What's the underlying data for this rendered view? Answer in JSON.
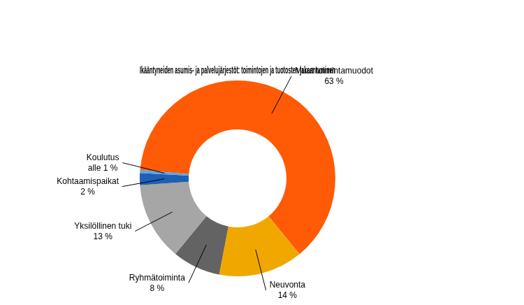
{
  "chart_data": {
    "type": "doughnut",
    "title": "Ikääntyneiden asumis- ja palvelujärjestöt: toimintojen ja tuotosten jakaantuminen",
    "categories": [
      "Muut toimintamuodot",
      "Neuvonta",
      "Ryhmätoiminta",
      "Yksilöllinen tuki",
      "Kohtaamispaikat",
      "Koulutus"
    ],
    "values": [
      63,
      14,
      8,
      13,
      2,
      0.5
    ],
    "value_labels": [
      "63 %",
      "14 %",
      "8 %",
      "13 %",
      "2 %",
      "alle 1 %"
    ],
    "colors": [
      "#ff5a05",
      "#f0a800",
      "#636363",
      "#a6a6a6",
      "#1f5fb4",
      "#5aa5e8"
    ],
    "data_labels": true
  }
}
